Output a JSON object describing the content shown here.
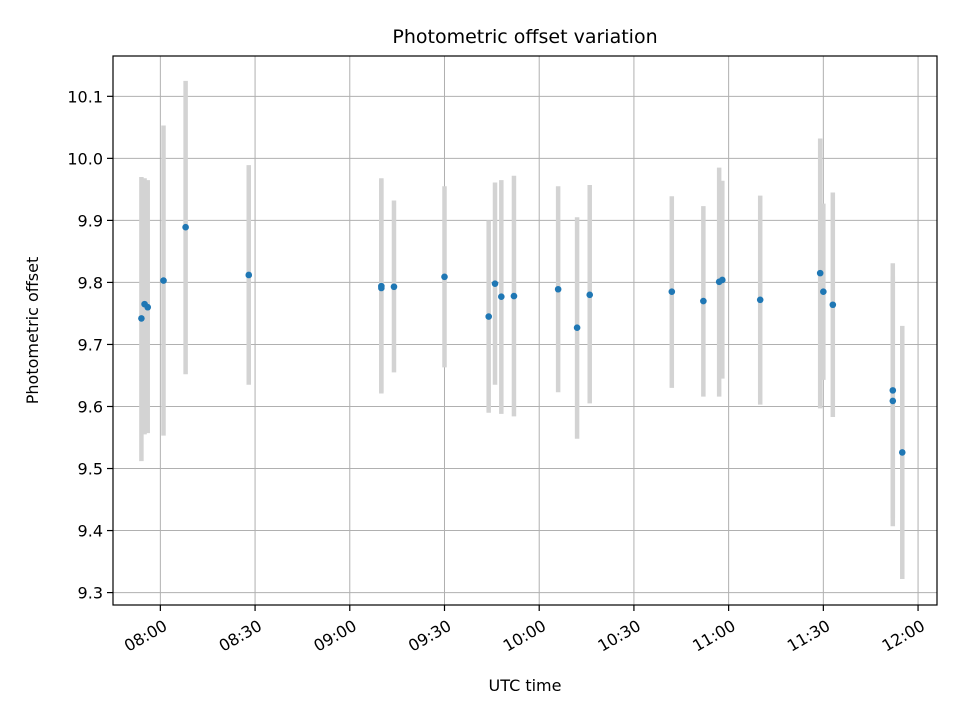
{
  "chart_data": {
    "type": "scatter",
    "title": "Photometric offset variation",
    "xlabel": "UTC time",
    "ylabel": "Photometric offset",
    "grid": true,
    "legend": "none",
    "xlim": [
      "07:45",
      "12:06"
    ],
    "ylim": [
      9.28,
      10.165
    ],
    "x_ticks": [
      "08:00",
      "08:30",
      "09:00",
      "09:30",
      "10:00",
      "10:30",
      "11:00",
      "11:30",
      "12:00"
    ],
    "y_ticks": [
      "9.3",
      "9.4",
      "9.5",
      "9.6",
      "9.7",
      "9.8",
      "9.9",
      "10.0",
      "10.1"
    ],
    "colors": {
      "marker": "#1f77b4",
      "errorbar": "#d3d3d3",
      "grid": "#b0b0b0"
    },
    "points": [
      {
        "time": "07:54",
        "value": 9.742,
        "low": 9.512,
        "high": 9.97
      },
      {
        "time": "07:55",
        "value": 9.765,
        "low": 9.555,
        "high": 9.968
      },
      {
        "time": "07:56",
        "value": 9.76,
        "low": 9.557,
        "high": 9.965
      },
      {
        "time": "08:01",
        "value": 9.803,
        "low": 9.553,
        "high": 10.053
      },
      {
        "time": "08:08",
        "value": 9.889,
        "low": 9.652,
        "high": 10.125
      },
      {
        "time": "08:28",
        "value": 9.812,
        "low": 9.635,
        "high": 9.989
      },
      {
        "time": "09:10",
        "value": 9.794,
        "low": 9.621,
        "high": 9.968
      },
      {
        "time": "09:10",
        "value": 9.791,
        "low": 9.623,
        "high": 9.966
      },
      {
        "time": "09:14",
        "value": 9.793,
        "low": 9.655,
        "high": 9.932
      },
      {
        "time": "09:30",
        "value": 9.809,
        "low": 9.663,
        "high": 9.955
      },
      {
        "time": "09:44",
        "value": 9.745,
        "low": 9.59,
        "high": 9.9
      },
      {
        "time": "09:46",
        "value": 9.798,
        "low": 9.635,
        "high": 9.961
      },
      {
        "time": "09:48",
        "value": 9.777,
        "low": 9.588,
        "high": 9.965
      },
      {
        "time": "09:52",
        "value": 9.778,
        "low": 9.584,
        "high": 9.972
      },
      {
        "time": "10:06",
        "value": 9.789,
        "low": 9.623,
        "high": 9.955
      },
      {
        "time": "10:12",
        "value": 9.727,
        "low": 9.548,
        "high": 9.905
      },
      {
        "time": "10:16",
        "value": 9.78,
        "low": 9.605,
        "high": 9.957
      },
      {
        "time": "10:42",
        "value": 9.785,
        "low": 9.63,
        "high": 9.939
      },
      {
        "time": "10:52",
        "value": 9.77,
        "low": 9.616,
        "high": 9.923
      },
      {
        "time": "10:57",
        "value": 9.801,
        "low": 9.616,
        "high": 9.985
      },
      {
        "time": "10:58",
        "value": 9.804,
        "low": 9.645,
        "high": 9.964
      },
      {
        "time": "11:10",
        "value": 9.772,
        "low": 9.603,
        "high": 9.94
      },
      {
        "time": "11:29",
        "value": 9.815,
        "low": 9.597,
        "high": 10.032
      },
      {
        "time": "11:30",
        "value": 9.785,
        "low": 9.643,
        "high": 9.927
      },
      {
        "time": "11:33",
        "value": 9.764,
        "low": 9.583,
        "high": 9.945
      },
      {
        "time": "11:52",
        "value": 9.626,
        "low": 9.42,
        "high": 9.831
      },
      {
        "time": "11:52",
        "value": 9.609,
        "low": 9.407,
        "high": 9.81
      },
      {
        "time": "11:55",
        "value": 9.526,
        "low": 9.322,
        "high": 9.73
      }
    ]
  }
}
